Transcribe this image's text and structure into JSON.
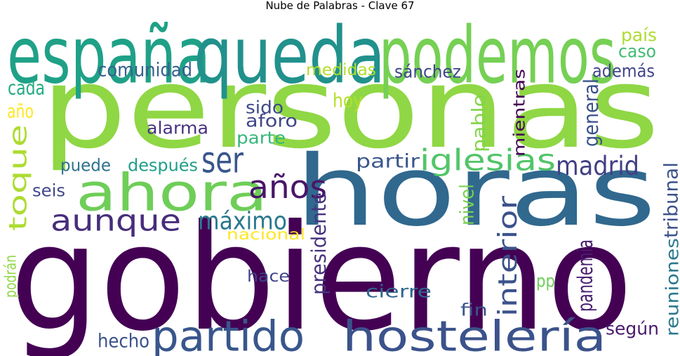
{
  "title": "Nube de Palabras - Clave 67",
  "words": [
    {
      "text": "personas",
      "color": "#8fd744"
    },
    {
      "text": "gobierno",
      "color": "#440154"
    },
    {
      "text": "horas",
      "color": "#31688e"
    },
    {
      "text": "españa",
      "color": "#1fa187"
    },
    {
      "text": "queda",
      "color": "#21918c"
    },
    {
      "text": "podemos",
      "color": "#75d054"
    },
    {
      "text": "ahora",
      "color": "#6ece58"
    },
    {
      "text": "hostelería",
      "color": "#3b528b"
    },
    {
      "text": "partido",
      "color": "#39568c"
    },
    {
      "text": "aunque",
      "color": "#472d7b"
    },
    {
      "text": "ser",
      "color": "#39568c"
    },
    {
      "text": "años",
      "color": "#481668"
    },
    {
      "text": "toque",
      "color": "#addc30"
    },
    {
      "text": "iglesias",
      "color": "#52c569"
    },
    {
      "text": "madrid",
      "color": "#424086"
    },
    {
      "text": "interior",
      "color": "#3b528b"
    },
    {
      "text": "máximo",
      "color": "#2a788e"
    },
    {
      "text": "comunidad",
      "color": "#35608d"
    },
    {
      "text": "medidas",
      "color": "#b5de2b"
    },
    {
      "text": "sánchez",
      "color": "#404688"
    },
    {
      "text": "país",
      "color": "#addc30"
    },
    {
      "text": "caso",
      "color": "#3fbc73"
    },
    {
      "text": "además",
      "color": "#414487"
    },
    {
      "text": "cada",
      "color": "#25ab82"
    },
    {
      "text": "año",
      "color": "#fde725"
    },
    {
      "text": "hoy",
      "color": "#b5de2b"
    },
    {
      "text": "sido",
      "color": "#3e4989"
    },
    {
      "text": "aforo",
      "color": "#404688"
    },
    {
      "text": "alarma",
      "color": "#46327e"
    },
    {
      "text": "parte",
      "color": "#35b779"
    },
    {
      "text": "puede",
      "color": "#2c728e"
    },
    {
      "text": "después",
      "color": "#1f9e89"
    },
    {
      "text": "partir",
      "color": "#39568c"
    },
    {
      "text": "seis",
      "color": "#404688"
    },
    {
      "text": "nacional",
      "color": "#fde725"
    },
    {
      "text": "mientras",
      "color": "#440154"
    },
    {
      "text": "pablo",
      "color": "#84d44b"
    },
    {
      "text": "general",
      "color": "#3b528b"
    },
    {
      "text": "nivel",
      "color": "#7ad151"
    },
    {
      "text": "presidente",
      "color": "#46337f"
    },
    {
      "text": "hace",
      "color": "#414487"
    },
    {
      "text": "cierre",
      "color": "#31688e"
    },
    {
      "text": "pp",
      "color": "#6ece58"
    },
    {
      "text": "fin",
      "color": "#3b528b"
    },
    {
      "text": "pandemia",
      "color": "#481f70"
    },
    {
      "text": "reuniones",
      "color": "#2a788e"
    },
    {
      "text": "tribunal",
      "color": "#3b528b"
    },
    {
      "text": "podrán",
      "color": "#8fd744"
    },
    {
      "text": "hecho",
      "color": "#3b528b"
    },
    {
      "text": "según",
      "color": "#481a6c"
    }
  ]
}
